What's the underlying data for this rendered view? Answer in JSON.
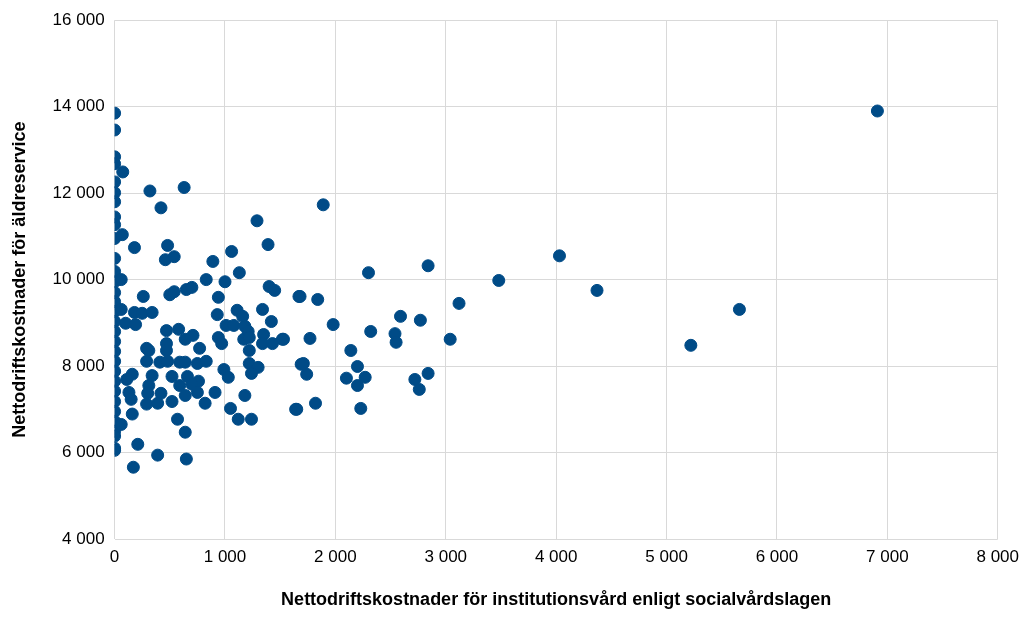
{
  "chart_data": {
    "type": "scatter",
    "xlabel": "Nettodriftskostnader för institutionsvård enligt socialvårdslagen",
    "ylabel": "Nettodriftskostnader för äldreservice",
    "xlim": [
      0,
      8000
    ],
    "ylim": [
      4000,
      16000
    ],
    "xticks": [
      0,
      {
        "value": 1000,
        "label": "1 000"
      },
      {
        "value": 2000,
        "label": "2 000"
      },
      {
        "value": 3000,
        "label": "3 000"
      },
      {
        "value": 4000,
        "label": "4 000"
      },
      {
        "value": 5000,
        "label": "5 000"
      },
      {
        "value": 6000,
        "label": "6 000"
      },
      {
        "value": 7000,
        "label": "7 000"
      },
      {
        "value": 8000,
        "label": "8 000"
      }
    ],
    "yticks": [
      {
        "value": 4000,
        "label": "4 000"
      },
      {
        "value": 6000,
        "label": "6 000"
      },
      {
        "value": 8000,
        "label": "8 000"
      },
      {
        "value": 10000,
        "label": "10 000"
      },
      {
        "value": 12000,
        "label": "12 000"
      },
      {
        "value": 14000,
        "label": "14 000"
      },
      {
        "value": 16000,
        "label": "16 000"
      }
    ],
    "grid": true,
    "marker": "circle",
    "series": [
      {
        "color": "#004b87",
        "x": [
          0,
          0,
          0,
          0,
          0,
          0,
          0,
          0,
          0,
          0,
          0,
          0,
          0,
          0,
          0,
          0,
          0,
          0,
          0,
          0,
          0,
          0,
          0,
          0,
          0,
          0,
          0,
          0,
          0,
          0,
          0,
          74,
          320,
          630,
          420,
          1290,
          70,
          180,
          480,
          1390,
          460,
          540,
          1060,
          890,
          1130,
          830,
          1000,
          1670,
          1400,
          1450,
          60,
          260,
          500,
          540,
          650,
          700,
          940,
          180,
          250,
          340,
          60,
          100,
          190,
          930,
          1110,
          1160,
          1340,
          1420,
          1010,
          1080,
          1180,
          1210,
          470,
          580,
          710,
          640,
          940,
          970,
          1170,
          1220,
          1350,
          1340,
          1430,
          1520,
          470,
          290,
          310,
          470,
          770,
          1220,
          290,
          410,
          480,
          590,
          640,
          750,
          830,
          1220,
          1300,
          1240,
          990,
          1030,
          1690,
          160,
          110,
          340,
          520,
          660,
          760,
          590,
          700,
          310,
          300,
          130,
          420,
          520,
          640,
          750,
          910,
          150,
          290,
          390,
          820,
          1180,
          1050,
          1650,
          160,
          60,
          570,
          1120,
          1240,
          640,
          210,
          390,
          650,
          170,
          1890,
          2300,
          2840,
          3480,
          1680,
          1840,
          3120,
          1980,
          2590,
          2770,
          1530,
          1770,
          2320,
          2540,
          2550,
          3040,
          2140,
          1710,
          1740,
          2200,
          2270,
          2100,
          2200,
          2840,
          2720,
          2760,
          1640,
          1820,
          2230,
          4030,
          4370,
          5660,
          5220,
          6910
        ],
        "values": [
          13850,
          13460,
          12840,
          12680,
          12260,
          12010,
          11800,
          11450,
          11270,
          10950,
          10490,
          10190,
          9950,
          9700,
          9490,
          9260,
          9030,
          8800,
          8570,
          8340,
          8110,
          7880,
          7650,
          7420,
          7180,
          6950,
          6720,
          6490,
          6380,
          6100,
          6050,
          12490,
          12050,
          12130,
          11660,
          11360,
          11040,
          10740,
          10790,
          10810,
          10460,
          10530,
          10650,
          10420,
          10160,
          10000,
          9950,
          9610,
          9840,
          9750,
          10000,
          9610,
          9650,
          9720,
          9770,
          9820,
          9590,
          9240,
          9220,
          9240,
          9310,
          8990,
          8960,
          9190,
          9290,
          9150,
          9310,
          9030,
          8940,
          8940,
          8920,
          8800,
          8820,
          8850,
          8710,
          8620,
          8660,
          8520,
          8620,
          8660,
          8730,
          8520,
          8520,
          8620,
          8520,
          8410,
          8360,
          8360,
          8410,
          8360,
          8110,
          8090,
          8110,
          8090,
          8090,
          8060,
          8110,
          8060,
          7970,
          7830,
          7920,
          7740,
          8040,
          7810,
          7690,
          7780,
          7760,
          7760,
          7650,
          7550,
          7580,
          7550,
          7370,
          7390,
          7370,
          7180,
          7320,
          7390,
          7390,
          7230,
          7120,
          7140,
          7140,
          7320,
          7020,
          7000,
          6890,
          6650,
          6770,
          6770,
          6770,
          6470,
          6190,
          5940,
          5850,
          5660,
          11730,
          10160,
          10320,
          9980,
          9610,
          9540,
          9450,
          8960,
          9150,
          9060,
          8620,
          8640,
          8800,
          8750,
          8550,
          8620,
          8360,
          8060,
          7810,
          7990,
          7740,
          7720,
          7550,
          7830,
          7690,
          7460,
          7000,
          7140,
          7020,
          10550,
          9750,
          9310,
          8480,
          13900
        ]
      }
    ]
  }
}
